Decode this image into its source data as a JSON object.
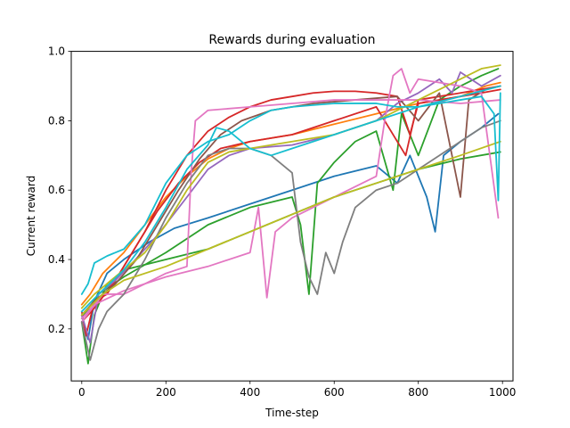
{
  "chart_data": {
    "type": "line",
    "title": "Rewards during evaluation",
    "xlabel": "Time-step",
    "ylabel": "Current reward",
    "xlim": [
      -25,
      1025
    ],
    "ylim": [
      0.05,
      1.0
    ],
    "xticks": [
      0,
      200,
      400,
      600,
      800,
      1000
    ],
    "yticks": [
      0.2,
      0.4,
      0.6,
      0.8,
      1.0
    ],
    "xtick_labels": [
      "0",
      "200",
      "400",
      "600",
      "800",
      "1000"
    ],
    "ytick_labels": [
      "0.2",
      "0.4",
      "0.6",
      "0.8",
      "1.0"
    ],
    "grid": false,
    "legend": "none",
    "series": [
      {
        "color": "#1f77b4",
        "points": [
          [
            0,
            0.24
          ],
          [
            15,
            0.17
          ],
          [
            30,
            0.28
          ],
          [
            60,
            0.36
          ],
          [
            100,
            0.4
          ],
          [
            160,
            0.45
          ],
          [
            220,
            0.49
          ],
          [
            300,
            0.52
          ],
          [
            400,
            0.56
          ],
          [
            500,
            0.6
          ],
          [
            600,
            0.64
          ],
          [
            700,
            0.67
          ],
          [
            750,
            0.62
          ],
          [
            780,
            0.7
          ],
          [
            820,
            0.58
          ],
          [
            840,
            0.48
          ],
          [
            860,
            0.7
          ],
          [
            900,
            0.74
          ],
          [
            950,
            0.78
          ],
          [
            990,
            0.82
          ]
        ]
      },
      {
        "color": "#ff7f0e",
        "points": [
          [
            0,
            0.27
          ],
          [
            20,
            0.3
          ],
          [
            50,
            0.36
          ],
          [
            100,
            0.42
          ],
          [
            150,
            0.5
          ],
          [
            200,
            0.58
          ],
          [
            250,
            0.64
          ],
          [
            300,
            0.69
          ],
          [
            350,
            0.72
          ],
          [
            400,
            0.74
          ],
          [
            500,
            0.76
          ],
          [
            600,
            0.79
          ],
          [
            700,
            0.82
          ],
          [
            800,
            0.85
          ],
          [
            900,
            0.87
          ],
          [
            960,
            0.9
          ],
          [
            995,
            0.91
          ]
        ]
      },
      {
        "color": "#2ca02c",
        "points": [
          [
            0,
            0.22
          ],
          [
            15,
            0.1
          ],
          [
            30,
            0.24
          ],
          [
            60,
            0.33
          ],
          [
            100,
            0.37
          ],
          [
            200,
            0.4
          ],
          [
            300,
            0.43
          ],
          [
            400,
            0.48
          ],
          [
            500,
            0.53
          ],
          [
            600,
            0.58
          ],
          [
            700,
            0.62
          ],
          [
            800,
            0.66
          ],
          [
            900,
            0.69
          ],
          [
            995,
            0.71
          ]
        ]
      },
      {
        "color": "#2ca02c",
        "points": [
          [
            0,
            0.23
          ],
          [
            40,
            0.3
          ],
          [
            100,
            0.35
          ],
          [
            200,
            0.42
          ],
          [
            300,
            0.5
          ],
          [
            400,
            0.55
          ],
          [
            500,
            0.58
          ],
          [
            520,
            0.5
          ],
          [
            540,
            0.3
          ],
          [
            560,
            0.62
          ],
          [
            600,
            0.68
          ],
          [
            650,
            0.74
          ],
          [
            700,
            0.77
          ],
          [
            740,
            0.6
          ],
          [
            760,
            0.82
          ],
          [
            800,
            0.7
          ],
          [
            850,
            0.86
          ],
          [
            900,
            0.9
          ],
          [
            950,
            0.93
          ],
          [
            990,
            0.95
          ]
        ]
      },
      {
        "color": "#d62728",
        "points": [
          [
            0,
            0.25
          ],
          [
            10,
            0.18
          ],
          [
            30,
            0.28
          ],
          [
            60,
            0.3
          ],
          [
            100,
            0.38
          ],
          [
            150,
            0.48
          ],
          [
            200,
            0.6
          ],
          [
            250,
            0.7
          ],
          [
            300,
            0.77
          ],
          [
            350,
            0.81
          ],
          [
            400,
            0.84
          ],
          [
            450,
            0.86
          ],
          [
            500,
            0.87
          ],
          [
            550,
            0.88
          ],
          [
            600,
            0.885
          ],
          [
            650,
            0.885
          ],
          [
            700,
            0.88
          ],
          [
            750,
            0.87
          ],
          [
            780,
            0.76
          ],
          [
            800,
            0.85
          ],
          [
            850,
            0.86
          ],
          [
            900,
            0.87
          ],
          [
            950,
            0.88
          ],
          [
            995,
            0.89
          ]
        ]
      },
      {
        "color": "#d62728",
        "points": [
          [
            0,
            0.22
          ],
          [
            30,
            0.26
          ],
          [
            80,
            0.34
          ],
          [
            130,
            0.44
          ],
          [
            180,
            0.54
          ],
          [
            230,
            0.62
          ],
          [
            280,
            0.68
          ],
          [
            330,
            0.72
          ],
          [
            400,
            0.74
          ],
          [
            500,
            0.76
          ],
          [
            600,
            0.8
          ],
          [
            700,
            0.84
          ],
          [
            770,
            0.7
          ],
          [
            800,
            0.86
          ],
          [
            900,
            0.88
          ],
          [
            995,
            0.9
          ]
        ]
      },
      {
        "color": "#9467bd",
        "points": [
          [
            0,
            0.24
          ],
          [
            20,
            0.16
          ],
          [
            40,
            0.3
          ],
          [
            80,
            0.34
          ],
          [
            120,
            0.39
          ],
          [
            180,
            0.47
          ],
          [
            250,
            0.58
          ],
          [
            300,
            0.66
          ],
          [
            350,
            0.7
          ],
          [
            400,
            0.72
          ],
          [
            500,
            0.73
          ],
          [
            600,
            0.76
          ],
          [
            700,
            0.8
          ],
          [
            750,
            0.85
          ],
          [
            800,
            0.88
          ],
          [
            850,
            0.92
          ],
          [
            880,
            0.88
          ],
          [
            900,
            0.94
          ],
          [
            950,
            0.9
          ],
          [
            995,
            0.93
          ]
        ]
      },
      {
        "color": "#8c564b",
        "points": [
          [
            0,
            0.24
          ],
          [
            30,
            0.28
          ],
          [
            80,
            0.33
          ],
          [
            130,
            0.4
          ],
          [
            180,
            0.5
          ],
          [
            230,
            0.6
          ],
          [
            280,
            0.69
          ],
          [
            330,
            0.76
          ],
          [
            380,
            0.8
          ],
          [
            450,
            0.83
          ],
          [
            550,
            0.85
          ],
          [
            650,
            0.86
          ],
          [
            750,
            0.87
          ],
          [
            800,
            0.8
          ],
          [
            850,
            0.88
          ],
          [
            900,
            0.58
          ],
          [
            920,
            0.86
          ],
          [
            960,
            0.89
          ],
          [
            995,
            0.9
          ]
        ]
      },
      {
        "color": "#e377c2",
        "points": [
          [
            0,
            0.23
          ],
          [
            30,
            0.27
          ],
          [
            100,
            0.31
          ],
          [
            200,
            0.35
          ],
          [
            300,
            0.38
          ],
          [
            400,
            0.42
          ],
          [
            420,
            0.55
          ],
          [
            440,
            0.29
          ],
          [
            460,
            0.48
          ],
          [
            500,
            0.52
          ],
          [
            600,
            0.58
          ],
          [
            700,
            0.64
          ],
          [
            720,
            0.8
          ],
          [
            740,
            0.93
          ],
          [
            760,
            0.95
          ],
          [
            780,
            0.88
          ],
          [
            800,
            0.92
          ],
          [
            850,
            0.91
          ],
          [
            900,
            0.9
          ],
          [
            950,
            0.88
          ],
          [
            990,
            0.52
          ]
        ]
      },
      {
        "color": "#e377c2",
        "points": [
          [
            0,
            0.22
          ],
          [
            50,
            0.3
          ],
          [
            100,
            0.3
          ],
          [
            150,
            0.33
          ],
          [
            200,
            0.36
          ],
          [
            250,
            0.38
          ],
          [
            260,
            0.65
          ],
          [
            270,
            0.8
          ],
          [
            300,
            0.83
          ],
          [
            400,
            0.84
          ],
          [
            500,
            0.85
          ],
          [
            600,
            0.86
          ],
          [
            700,
            0.86
          ],
          [
            800,
            0.86
          ],
          [
            900,
            0.85
          ],
          [
            995,
            0.86
          ]
        ]
      },
      {
        "color": "#7f7f7f",
        "points": [
          [
            0,
            0.22
          ],
          [
            20,
            0.11
          ],
          [
            40,
            0.2
          ],
          [
            60,
            0.25
          ],
          [
            100,
            0.3
          ],
          [
            150,
            0.4
          ],
          [
            200,
            0.52
          ],
          [
            250,
            0.62
          ],
          [
            300,
            0.7
          ],
          [
            350,
            0.72
          ],
          [
            400,
            0.72
          ],
          [
            450,
            0.7
          ],
          [
            500,
            0.65
          ],
          [
            520,
            0.45
          ],
          [
            540,
            0.35
          ],
          [
            560,
            0.3
          ],
          [
            580,
            0.42
          ],
          [
            600,
            0.36
          ],
          [
            620,
            0.45
          ],
          [
            650,
            0.55
          ],
          [
            700,
            0.6
          ],
          [
            750,
            0.62
          ],
          [
            800,
            0.66
          ],
          [
            850,
            0.7
          ],
          [
            900,
            0.74
          ],
          [
            950,
            0.78
          ],
          [
            995,
            0.8
          ]
        ]
      },
      {
        "color": "#bcbd22",
        "points": [
          [
            0,
            0.26
          ],
          [
            30,
            0.3
          ],
          [
            80,
            0.35
          ],
          [
            150,
            0.42
          ],
          [
            200,
            0.5
          ],
          [
            250,
            0.6
          ],
          [
            300,
            0.68
          ],
          [
            350,
            0.71
          ],
          [
            400,
            0.72
          ],
          [
            450,
            0.73
          ],
          [
            500,
            0.74
          ],
          [
            600,
            0.76
          ],
          [
            700,
            0.8
          ],
          [
            800,
            0.86
          ],
          [
            900,
            0.92
          ],
          [
            950,
            0.95
          ],
          [
            995,
            0.96
          ]
        ]
      },
      {
        "color": "#bcbd22",
        "points": [
          [
            0,
            0.24
          ],
          [
            50,
            0.3
          ],
          [
            100,
            0.34
          ],
          [
            200,
            0.38
          ],
          [
            300,
            0.43
          ],
          [
            400,
            0.48
          ],
          [
            500,
            0.53
          ],
          [
            600,
            0.58
          ],
          [
            700,
            0.62
          ],
          [
            800,
            0.66
          ],
          [
            900,
            0.7
          ],
          [
            995,
            0.74
          ]
        ]
      },
      {
        "color": "#17becf",
        "points": [
          [
            0,
            0.3
          ],
          [
            15,
            0.33
          ],
          [
            30,
            0.39
          ],
          [
            60,
            0.41
          ],
          [
            100,
            0.43
          ],
          [
            150,
            0.5
          ],
          [
            200,
            0.62
          ],
          [
            250,
            0.7
          ],
          [
            300,
            0.74
          ],
          [
            350,
            0.76
          ],
          [
            400,
            0.8
          ],
          [
            450,
            0.83
          ],
          [
            500,
            0.84
          ],
          [
            550,
            0.845
          ],
          [
            600,
            0.85
          ],
          [
            650,
            0.85
          ],
          [
            700,
            0.85
          ],
          [
            750,
            0.84
          ],
          [
            800,
            0.84
          ],
          [
            850,
            0.85
          ],
          [
            900,
            0.86
          ],
          [
            950,
            0.87
          ],
          [
            980,
            0.82
          ],
          [
            990,
            0.57
          ],
          [
            995,
            0.88
          ]
        ]
      },
      {
        "color": "#17becf",
        "points": [
          [
            0,
            0.25
          ],
          [
            40,
            0.3
          ],
          [
            100,
            0.37
          ],
          [
            150,
            0.45
          ],
          [
            200,
            0.55
          ],
          [
            250,
            0.66
          ],
          [
            300,
            0.73
          ],
          [
            320,
            0.78
          ],
          [
            350,
            0.77
          ],
          [
            400,
            0.72
          ],
          [
            450,
            0.7
          ],
          [
            500,
            0.72
          ],
          [
            600,
            0.76
          ],
          [
            700,
            0.8
          ],
          [
            800,
            0.84
          ],
          [
            900,
            0.87
          ],
          [
            995,
            0.9
          ]
        ]
      }
    ]
  }
}
